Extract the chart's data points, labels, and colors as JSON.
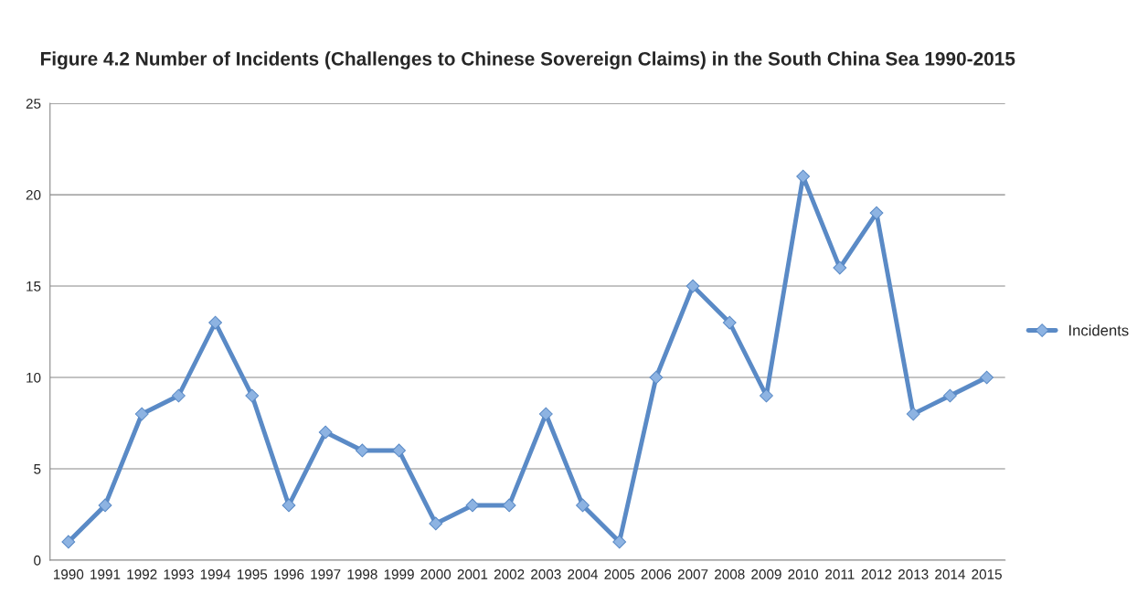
{
  "chart_data": {
    "type": "line",
    "title": "Figure 4.2 Number of Incidents (Challenges to Chinese Sovereign Claims) in the South China Sea 1990-2015",
    "categories": [
      "1990",
      "1991",
      "1992",
      "1993",
      "1994",
      "1995",
      "1996",
      "1997",
      "1998",
      "1999",
      "2000",
      "2001",
      "2002",
      "2003",
      "2004",
      "2005",
      "2006",
      "2007",
      "2008",
      "2009",
      "2010",
      "2011",
      "2012",
      "2013",
      "2014",
      "2015"
    ],
    "series": [
      {
        "name": "Incidents",
        "color": "#5a8ac6",
        "values": [
          1,
          3,
          8,
          9,
          13,
          9,
          3,
          7,
          6,
          6,
          2,
          3,
          3,
          8,
          3,
          1,
          10,
          15,
          13,
          9,
          21,
          16,
          19,
          8,
          9,
          10
        ]
      }
    ],
    "ylim": [
      0,
      25
    ],
    "yticks": [
      0,
      5,
      10,
      15,
      20,
      25
    ],
    "grid": "y",
    "legend": "right",
    "marker": "diamond",
    "line_style": "solid"
  }
}
